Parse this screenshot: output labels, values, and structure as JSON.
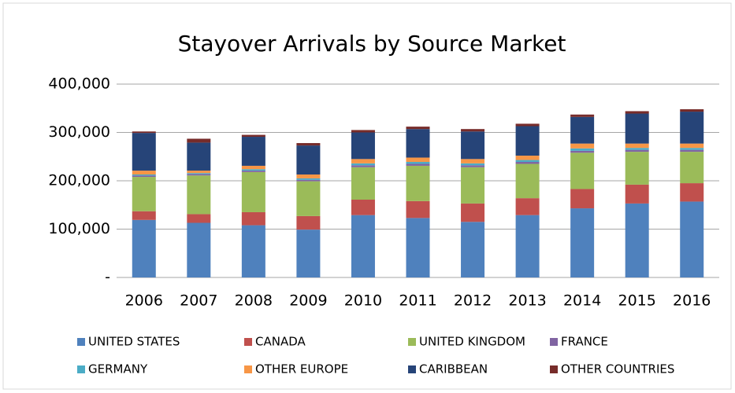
{
  "chart_data": {
    "type": "stacked_bar",
    "title": "Stayover Arrivals by Source Market",
    "categories": [
      "2006",
      "2007",
      "2008",
      "2009",
      "2010",
      "2011",
      "2012",
      "2013",
      "2014",
      "2015",
      "2016"
    ],
    "series": [
      {
        "name": "UNITED STATES",
        "color": "#4f81bd",
        "values": [
          119000,
          113000,
          108000,
          99000,
          129000,
          123000,
          115000,
          129000,
          143000,
          153000,
          157000
        ]
      },
      {
        "name": "CANADA",
        "color": "#c0504d",
        "values": [
          18000,
          18000,
          27000,
          28000,
          32000,
          35000,
          38000,
          35000,
          40000,
          39000,
          38000
        ]
      },
      {
        "name": "UNITED KINGDOM",
        "color": "#9bbb59",
        "values": [
          71000,
          80000,
          83000,
          72000,
          67000,
          73000,
          75000,
          71000,
          75000,
          68000,
          65000
        ]
      },
      {
        "name": "FRANCE",
        "color": "#8064a2",
        "values": [
          3000,
          3000,
          3000,
          3000,
          4000,
          4000,
          4000,
          4000,
          4000,
          4000,
          4000
        ]
      },
      {
        "name": "GERMANY",
        "color": "#4bacc6",
        "values": [
          2000,
          2000,
          3000,
          3000,
          4000,
          4000,
          4000,
          4000,
          5000,
          4000,
          4000
        ]
      },
      {
        "name": "OTHER EUROPE",
        "color": "#f79646",
        "values": [
          8000,
          5000,
          7000,
          8000,
          9000,
          9000,
          9000,
          9000,
          10000,
          9000,
          9000
        ]
      },
      {
        "name": "CARIBBEAN",
        "color": "#264478",
        "values": [
          78000,
          58000,
          60000,
          60000,
          55000,
          59000,
          57000,
          61000,
          55000,
          62000,
          66000
        ]
      },
      {
        "name": "OTHER COUNTRIES",
        "color": "#772c2a",
        "values": [
          3000,
          8000,
          4000,
          5000,
          5000,
          5000,
          5000,
          5000,
          5000,
          5000,
          5000
        ]
      }
    ],
    "ylim": [
      0,
      400000
    ],
    "yticks": [
      {
        "value": 0,
        "label": "-"
      },
      {
        "value": 100000,
        "label": "100,000"
      },
      {
        "value": 200000,
        "label": "200,000"
      },
      {
        "value": 300000,
        "label": "300,000"
      },
      {
        "value": 400000,
        "label": "400,000"
      }
    ],
    "grid": true,
    "legend": "bottom"
  }
}
